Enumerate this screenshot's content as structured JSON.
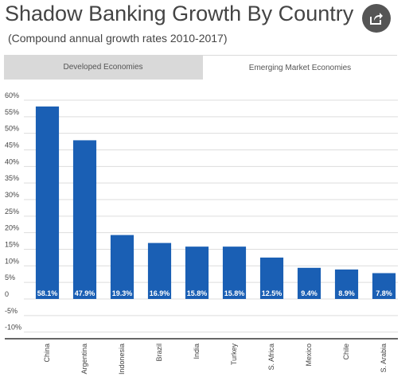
{
  "header": {
    "title": "Shadow Banking Growth By Country",
    "subtitle": "(Compound annual growth rates 2010-2017)",
    "share_icon": "share-icon"
  },
  "tabs": [
    {
      "label": "Developed Economies",
      "active": false
    },
    {
      "label": "Emerging Market Economies",
      "active": true
    }
  ],
  "colors": {
    "bar": "#1a5fb4",
    "grid": "#dddddd",
    "axis": "#333333",
    "text": "#444444"
  },
  "chart_data": {
    "type": "bar",
    "categories": [
      "China",
      "Argentina",
      "Indonesia",
      "Brazil",
      "India",
      "Turkey",
      "S. Africa",
      "Mexico",
      "Chile",
      "S. Arabia"
    ],
    "values": [
      58.1,
      47.9,
      19.3,
      16.9,
      15.8,
      15.8,
      12.5,
      9.4,
      8.9,
      7.8
    ],
    "value_labels": [
      "58.1%",
      "47.9%",
      "19.3%",
      "16.9%",
      "15.8%",
      "15.8%",
      "12.5%",
      "9.4%",
      "8.9%",
      "7.8%"
    ],
    "y_ticks": [
      60,
      55,
      50,
      45,
      40,
      35,
      30,
      25,
      20,
      15,
      10,
      5,
      0,
      -5,
      -10
    ],
    "y_tick_labels": [
      "60%",
      "55%",
      "50%",
      "45%",
      "40%",
      "35%",
      "30%",
      "25%",
      "20%",
      "15%",
      "10%",
      "5%",
      "0",
      "-5%",
      "-10%"
    ],
    "ylim": [
      -12,
      60
    ],
    "grid": true
  }
}
